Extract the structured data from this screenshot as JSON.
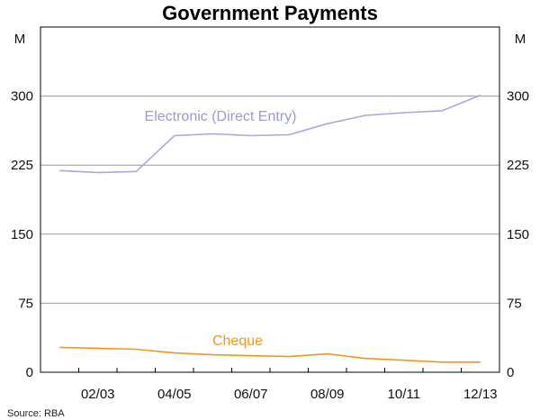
{
  "chart_data": {
    "type": "line",
    "title": "Government Payments",
    "unit_left": "M",
    "unit_right": "M",
    "ylim": [
      0,
      375
    ],
    "yticks": [
      0,
      75,
      150,
      225,
      300
    ],
    "x_tick_labels": [
      "02/03",
      "04/05",
      "06/07",
      "08/09",
      "10/11",
      "12/13"
    ],
    "x": [
      "01/02",
      "02/03",
      "03/04",
      "04/05",
      "05/06",
      "06/07",
      "07/08",
      "08/09",
      "09/10",
      "10/11",
      "11/12",
      "12/13"
    ],
    "grid": true,
    "series": [
      {
        "name": "Electronic (Direct Entry)",
        "color": "#a8a8dc",
        "values": [
          219,
          217,
          218,
          257,
          259,
          257,
          258,
          270,
          279,
          282,
          284,
          301
        ]
      },
      {
        "name": "Cheque",
        "color": "#f7941d",
        "values": [
          27,
          26,
          25,
          21,
          19,
          18,
          17,
          20,
          15,
          13,
          11,
          11
        ]
      }
    ],
    "source": "Source: RBA"
  }
}
